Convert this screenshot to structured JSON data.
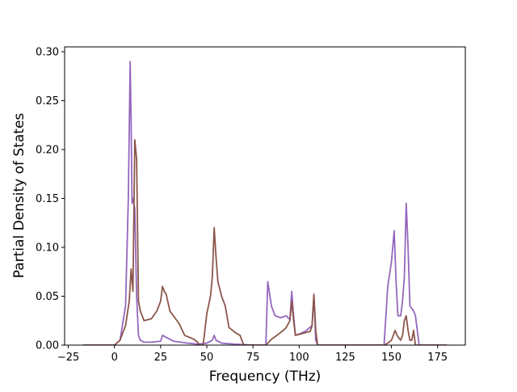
{
  "chart_data": {
    "type": "line",
    "title": "",
    "xlabel": "Frequency (THz)",
    "ylabel": "Partial Density of States",
    "xlim": [
      -27,
      190
    ],
    "ylim": [
      0,
      0.305
    ],
    "xticks": [
      -25,
      0,
      25,
      50,
      75,
      100,
      125,
      150,
      175
    ],
    "xtick_labels": [
      "−25",
      "0",
      "25",
      "50",
      "75",
      "100",
      "125",
      "150",
      "175"
    ],
    "yticks": [
      0,
      0.05,
      0.1,
      0.15,
      0.2,
      0.25,
      0.3
    ],
    "ytick_labels": [
      "0.00",
      "0.05",
      "0.10",
      "0.15",
      "0.20",
      "0.25",
      "0.30"
    ],
    "grid": false,
    "legend": "none",
    "series": [
      {
        "color": "#9467bd",
        "x": [
          -17,
          0,
          3,
          6,
          7.5,
          8.5,
          9,
          9.5,
          10,
          11,
          12,
          13,
          14,
          16,
          20,
          25,
          26,
          28,
          32,
          40,
          45,
          50,
          53,
          54,
          55,
          58,
          65,
          70,
          78,
          82,
          83,
          85,
          87,
          90,
          93,
          95,
          96,
          97,
          98,
          101,
          104,
          107,
          108,
          109,
          110,
          120,
          135,
          146,
          148,
          150,
          151.5,
          152.5,
          153.5,
          155,
          156,
          157,
          158,
          159,
          160,
          162,
          163,
          165,
          170,
          180
        ],
        "y": [
          0,
          0,
          0.005,
          0.04,
          0.15,
          0.29,
          0.23,
          0.145,
          0.15,
          0.14,
          0.05,
          0.01,
          0.005,
          0.003,
          0.003,
          0.004,
          0.01,
          0.008,
          0.004,
          0.002,
          0.001,
          0.002,
          0.005,
          0.01,
          0.005,
          0.002,
          0.001,
          0.0005,
          0,
          0,
          0.065,
          0.04,
          0.03,
          0.028,
          0.03,
          0.026,
          0.055,
          0.03,
          0.01,
          0.012,
          0.015,
          0.02,
          0.05,
          0.005,
          0,
          0,
          0,
          0,
          0.06,
          0.085,
          0.117,
          0.065,
          0.03,
          0.03,
          0.045,
          0.07,
          0.145,
          0.1,
          0.04,
          0.035,
          0.03,
          0,
          0,
          0
        ]
      },
      {
        "color": "#8c564b",
        "x": [
          -17,
          0,
          3,
          6,
          8,
          9,
          10,
          11,
          12,
          13,
          14,
          16,
          20,
          23,
          25,
          26,
          27,
          28,
          30,
          35,
          38,
          43,
          45,
          46,
          48,
          50,
          52,
          53,
          54,
          55,
          56,
          58,
          60,
          62,
          66,
          68,
          70,
          80,
          82,
          83,
          85,
          88,
          92,
          93,
          95,
          96,
          97,
          98,
          102,
          106,
          107,
          108,
          109,
          110,
          120,
          135,
          146,
          148,
          150,
          151,
          152,
          153,
          155,
          156,
          157,
          158,
          159,
          160,
          161,
          162,
          163,
          165,
          180
        ],
        "y": [
          0,
          0,
          0.005,
          0.02,
          0.045,
          0.078,
          0.055,
          0.21,
          0.19,
          0.045,
          0.035,
          0.025,
          0.027,
          0.035,
          0.045,
          0.06,
          0.055,
          0.052,
          0.035,
          0.022,
          0.01,
          0.006,
          0.003,
          0,
          0,
          0.032,
          0.05,
          0.07,
          0.12,
          0.09,
          0.065,
          0.05,
          0.04,
          0.018,
          0.012,
          0.01,
          0,
          0,
          0,
          0.002,
          0.006,
          0.01,
          0.016,
          0.018,
          0.025,
          0.045,
          0.025,
          0.01,
          0.012,
          0.014,
          0.02,
          0.052,
          0.015,
          0,
          0,
          0,
          0,
          0.002,
          0.005,
          0.01,
          0.015,
          0.01,
          0.005,
          0.01,
          0.025,
          0.03,
          0.015,
          0.005,
          0.005,
          0.015,
          0,
          0,
          0
        ]
      }
    ]
  }
}
